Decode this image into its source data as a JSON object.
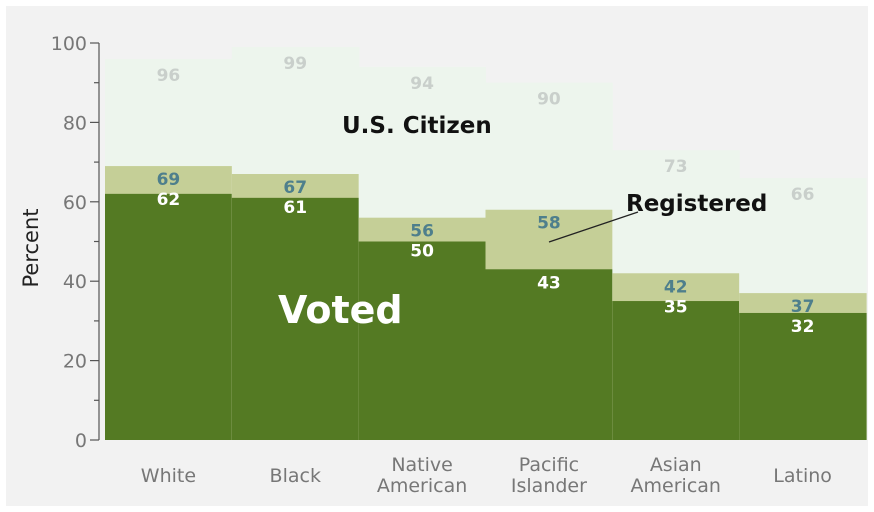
{
  "chart_data": {
    "type": "bar",
    "ylabel": "Percent",
    "ylim": [
      0,
      100
    ],
    "yticks": [
      0,
      20,
      40,
      60,
      80,
      100
    ],
    "grid": false,
    "categories": [
      [
        "White"
      ],
      [
        "Black"
      ],
      [
        "Native",
        "American"
      ],
      [
        "Pacific",
        "Islander"
      ],
      [
        "Asian",
        "American"
      ],
      [
        "Latino"
      ]
    ],
    "series": [
      {
        "name": "U.S. Citizen",
        "values": [
          96,
          99,
          94,
          90,
          73,
          66
        ]
      },
      {
        "name": "Registered",
        "values": [
          69,
          67,
          56,
          58,
          42,
          37
        ]
      },
      {
        "name": "Voted",
        "values": [
          62,
          61,
          50,
          43,
          35,
          32
        ]
      }
    ],
    "colors": {
      "citizen": "#edf5ed",
      "registered": "#c5cf97",
      "voted": "#547a23"
    }
  }
}
